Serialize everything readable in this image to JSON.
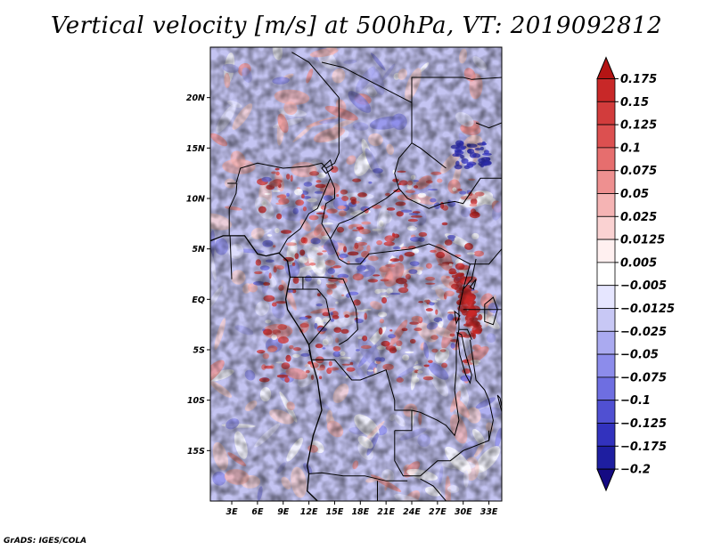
{
  "title": "Vertical velocity [m/s] at 500hPa, VT: 2019092812",
  "credit": "GrADS: IGES/COLA",
  "chart_data": {
    "type": "heatmap",
    "title": "Vertical velocity [m/s] at 500hPa, VT: 2019092812",
    "x_ticks": [
      "3E",
      "6E",
      "9E",
      "12E",
      "15E",
      "18E",
      "21E",
      "24E",
      "27E",
      "30E",
      "33E"
    ],
    "x_tick_values": [
      3,
      6,
      9,
      12,
      15,
      18,
      21,
      24,
      27,
      30,
      33
    ],
    "y_ticks": [
      "20N",
      "15N",
      "10N",
      "5N",
      "EQ",
      "5S",
      "10S",
      "15S"
    ],
    "y_tick_values": [
      20,
      15,
      10,
      5,
      0,
      -5,
      -10,
      -15
    ],
    "xlim": [
      0.5,
      34.5
    ],
    "ylim": [
      -20,
      25
    ],
    "colorbar": {
      "levels": [
        "0.175",
        "0.15",
        "0.125",
        "0.1",
        "0.075",
        "0.05",
        "0.025",
        "0.0125",
        "0.005",
        "−0.005",
        "−0.0125",
        "−0.025",
        "−0.05",
        "−0.075",
        "−0.1",
        "−0.125",
        "−0.175",
        "−0.2"
      ],
      "colors": [
        "#b41414",
        "#c82828",
        "#d23c3c",
        "#dc5050",
        "#e66e6e",
        "#ee9090",
        "#f5b4b4",
        "#fad2d2",
        "#fff0f0",
        "#ffffff",
        "#e6e6ff",
        "#c8c8f5",
        "#aaaaf0",
        "#8c8ceb",
        "#6e6ee1",
        "#5050d2",
        "#3232be",
        "#1e1ea0",
        "#140a82"
      ]
    }
  }
}
